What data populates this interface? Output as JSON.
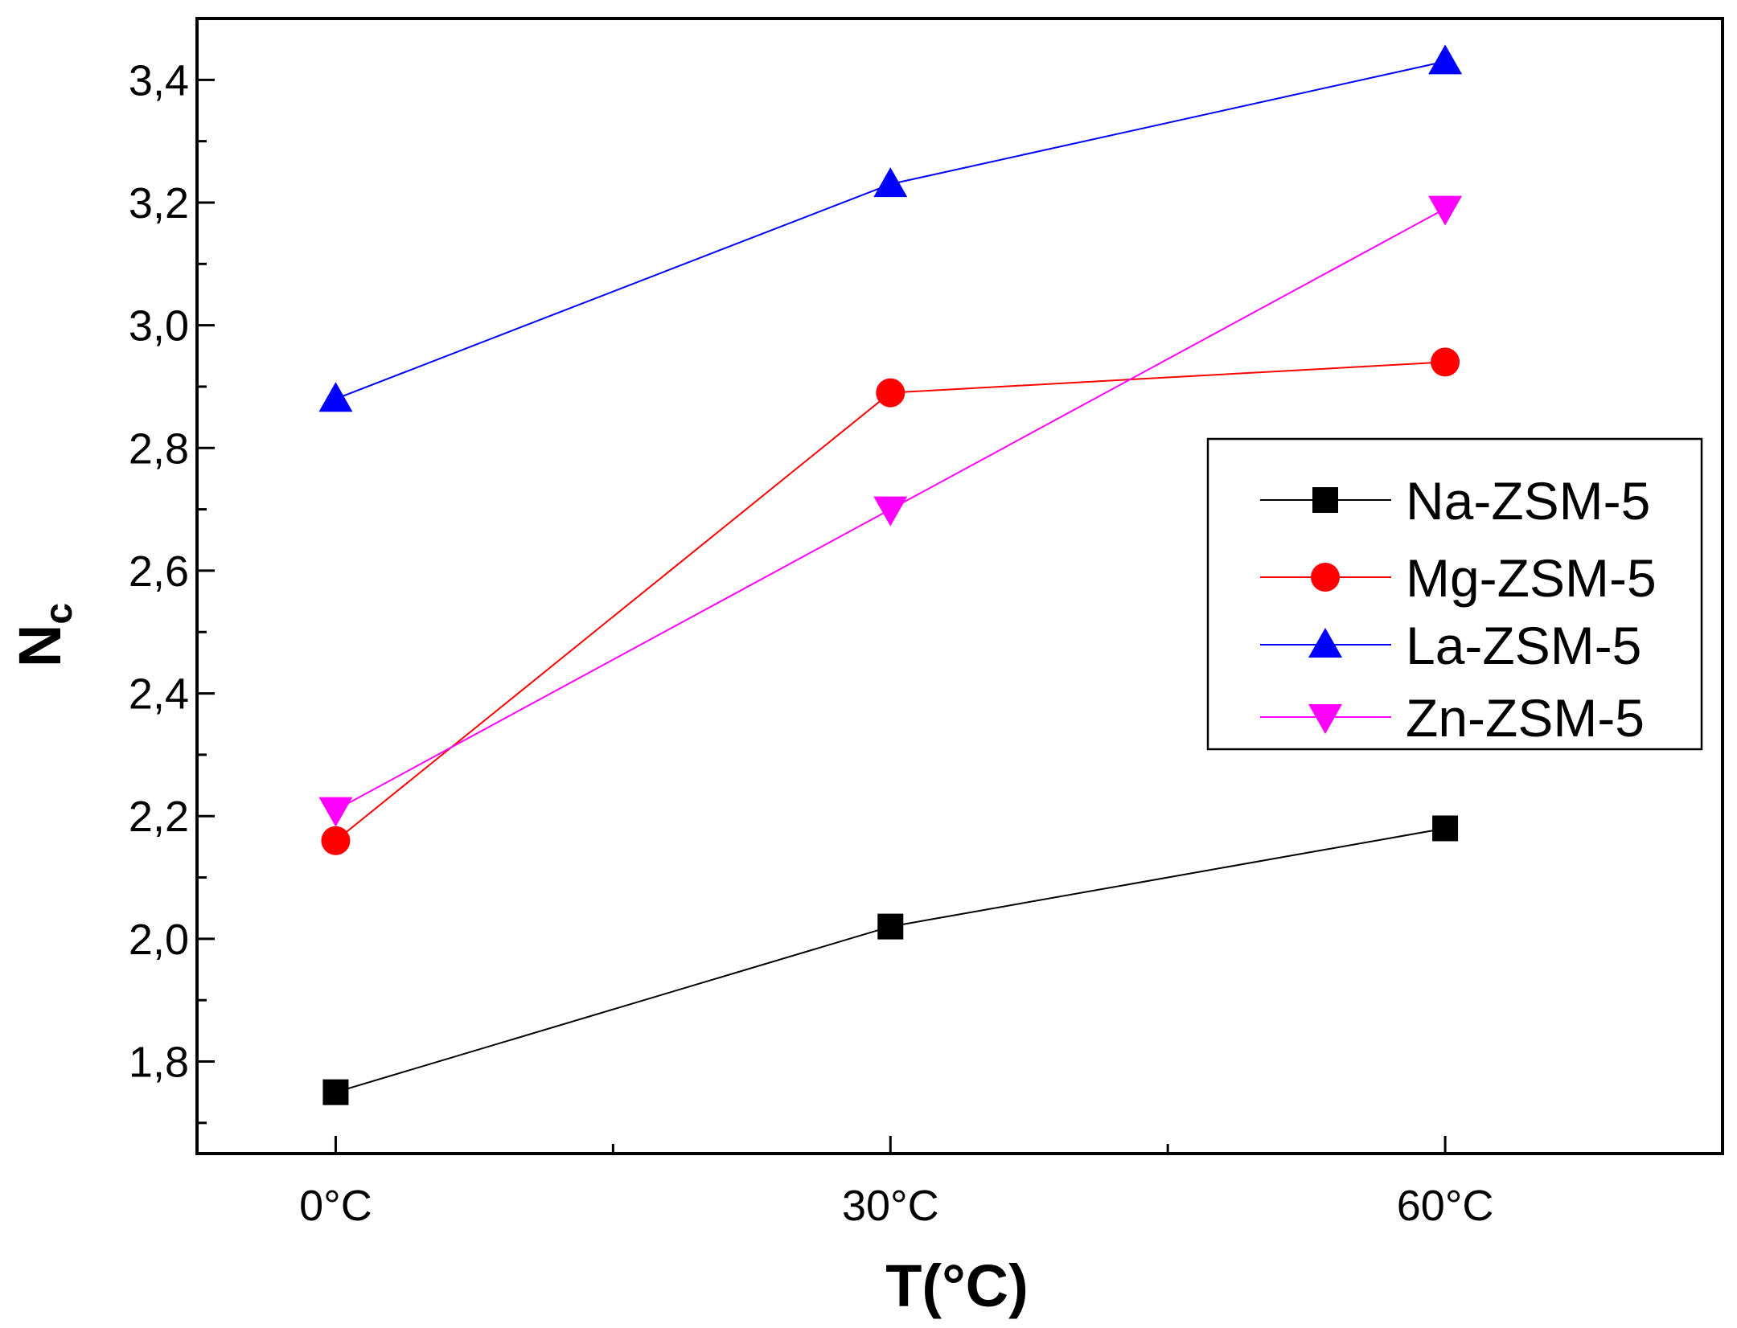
{
  "chart_data": {
    "type": "line",
    "title": "",
    "xlabel": "T(°C)",
    "ylabel_main": "N",
    "ylabel_sub": "c",
    "categories": [
      "0°C",
      "30°C",
      "60°C"
    ],
    "x": [
      0,
      30,
      60
    ],
    "xlim": [
      -7.5,
      75
    ],
    "ylim": [
      1.65,
      3.5
    ],
    "yticks": [
      1.8,
      2.0,
      2.2,
      2.4,
      2.6,
      2.8,
      3.0,
      3.2,
      3.4
    ],
    "ytick_labels": [
      "1,8",
      "2,0",
      "2,2",
      "2,4",
      "2,6",
      "2,8",
      "3,0",
      "3,2",
      "3,4"
    ],
    "grid": false,
    "legend_position": "right",
    "series": [
      {
        "name": "Na-ZSM-5",
        "color": "#000000",
        "marker": "square",
        "values": [
          1.75,
          2.02,
          2.18
        ]
      },
      {
        "name": "Mg-ZSM-5",
        "color": "#ff0000",
        "marker": "circle",
        "values": [
          2.16,
          2.89,
          2.94
        ]
      },
      {
        "name": "La-ZSM-5",
        "color": "#0000ff",
        "marker": "triangle-up",
        "values": [
          2.88,
          3.23,
          3.43
        ]
      },
      {
        "name": "Zn-ZSM-5",
        "color": "#ff00ff",
        "marker": "triangle-down",
        "values": [
          2.21,
          2.7,
          3.19
        ]
      }
    ]
  }
}
